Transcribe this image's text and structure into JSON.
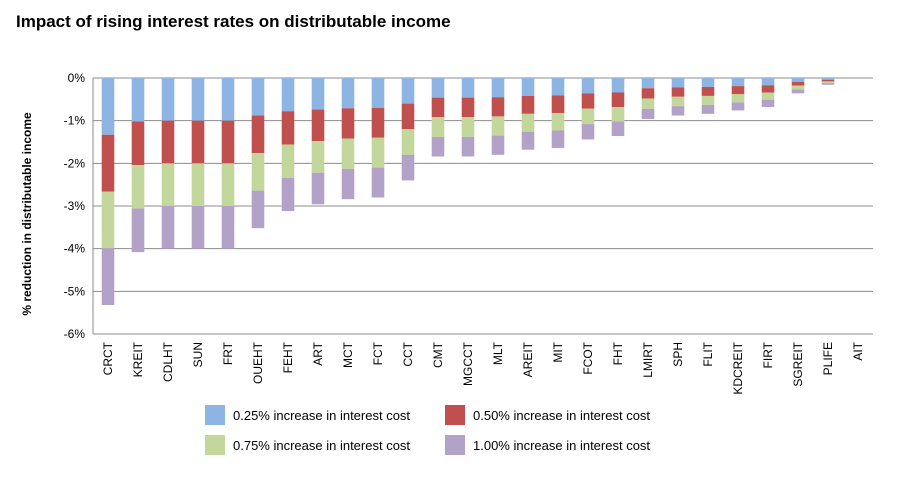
{
  "chart_data": {
    "type": "bar",
    "stacked": true,
    "title": "Impact of rising interest rates on distributable  income",
    "xlabel": "",
    "ylabel": "% reduction in distributable income",
    "ylim": [
      -6,
      0
    ],
    "yticks": [
      0,
      -1,
      -2,
      -3,
      -4,
      -5,
      -6
    ],
    "ytick_labels": [
      "0%",
      "-1%",
      "-2%",
      "-3%",
      "-4%",
      "-5%",
      "-6%"
    ],
    "grid": true,
    "legend_position": "bottom",
    "categories": [
      "CRCT",
      "KREIT",
      "CDLHT",
      "SUN",
      "FRT",
      "OUEHT",
      "FEHT",
      "ART",
      "MCT",
      "FCT",
      "CCT",
      "CMT",
      "MGCCT",
      "MLT",
      "AREIT",
      "MIT",
      "FCOT",
      "FHT",
      "LMIRT",
      "SPH",
      "FLIT",
      "KDCREIT",
      "FIRT",
      "SGREIT",
      "PLIFE",
      "AIT"
    ],
    "series": [
      {
        "name": "0.25% increase in interest cost",
        "color": "#8EB4E3",
        "values": [
          -1.33,
          -1.02,
          -1.0,
          -1.0,
          -1.0,
          -0.88,
          -0.78,
          -0.74,
          -0.71,
          -0.7,
          -0.6,
          -0.46,
          -0.46,
          -0.45,
          -0.42,
          -0.41,
          -0.36,
          -0.34,
          -0.24,
          -0.22,
          -0.21,
          -0.19,
          -0.17,
          -0.09,
          -0.04,
          0.0
        ]
      },
      {
        "name": "0.50% increase in interest cost",
        "color": "#C0504D",
        "values": [
          -1.33,
          -1.02,
          -1.0,
          -1.0,
          -1.0,
          -0.88,
          -0.78,
          -0.74,
          -0.71,
          -0.7,
          -0.6,
          -0.46,
          -0.46,
          -0.45,
          -0.42,
          -0.41,
          -0.36,
          -0.34,
          -0.24,
          -0.22,
          -0.21,
          -0.19,
          -0.17,
          -0.09,
          -0.04,
          0.0
        ]
      },
      {
        "name": "0.75% increase in interest cost",
        "color": "#C3D69B",
        "values": [
          -1.33,
          -1.02,
          -1.0,
          -1.0,
          -1.0,
          -0.88,
          -0.78,
          -0.74,
          -0.71,
          -0.7,
          -0.6,
          -0.46,
          -0.46,
          -0.45,
          -0.42,
          -0.41,
          -0.36,
          -0.34,
          -0.24,
          -0.22,
          -0.21,
          -0.19,
          -0.17,
          -0.09,
          -0.04,
          0.0
        ]
      },
      {
        "name": "1.00% increase in interest cost",
        "color": "#B3A2C7",
        "values": [
          -1.33,
          -1.02,
          -1.0,
          -1.0,
          -1.0,
          -0.88,
          -0.78,
          -0.74,
          -0.71,
          -0.7,
          -0.6,
          -0.46,
          -0.46,
          -0.45,
          -0.42,
          -0.41,
          -0.36,
          -0.34,
          -0.24,
          -0.22,
          -0.21,
          -0.19,
          -0.17,
          -0.09,
          -0.04,
          0.0
        ]
      }
    ]
  }
}
